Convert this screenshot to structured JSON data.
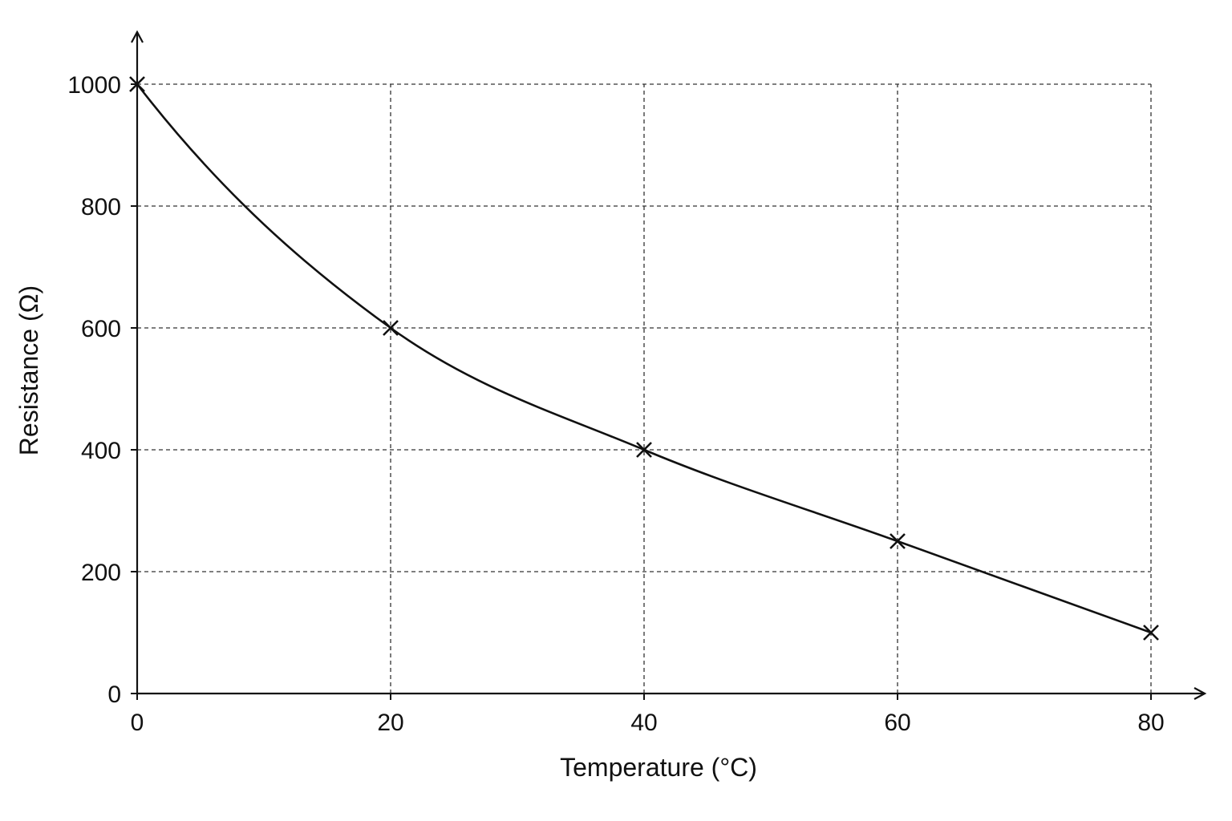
{
  "chart_data": {
    "type": "line",
    "title": "",
    "xlabel": "Temperature (°C)",
    "ylabel": "Resistance (Ω)",
    "xlim": [
      0,
      80
    ],
    "ylim": [
      0,
      1000
    ],
    "x_ticks": [
      0,
      20,
      40,
      60,
      80
    ],
    "y_ticks": [
      0,
      200,
      400,
      600,
      800,
      1000
    ],
    "x_tick_labels": [
      "0",
      "20",
      "40",
      "60",
      "80"
    ],
    "y_tick_labels": [
      "0",
      "200",
      "400",
      "600",
      "800",
      "1000"
    ],
    "grid": true,
    "legend": "none",
    "marker": "x",
    "series": [
      {
        "points": [
          {
            "x": 0,
            "y": 1000
          },
          {
            "x": 20,
            "y": 600
          },
          {
            "x": 40,
            "y": 400
          },
          {
            "x": 60,
            "y": 250
          },
          {
            "x": 80,
            "y": 100
          }
        ]
      }
    ]
  }
}
